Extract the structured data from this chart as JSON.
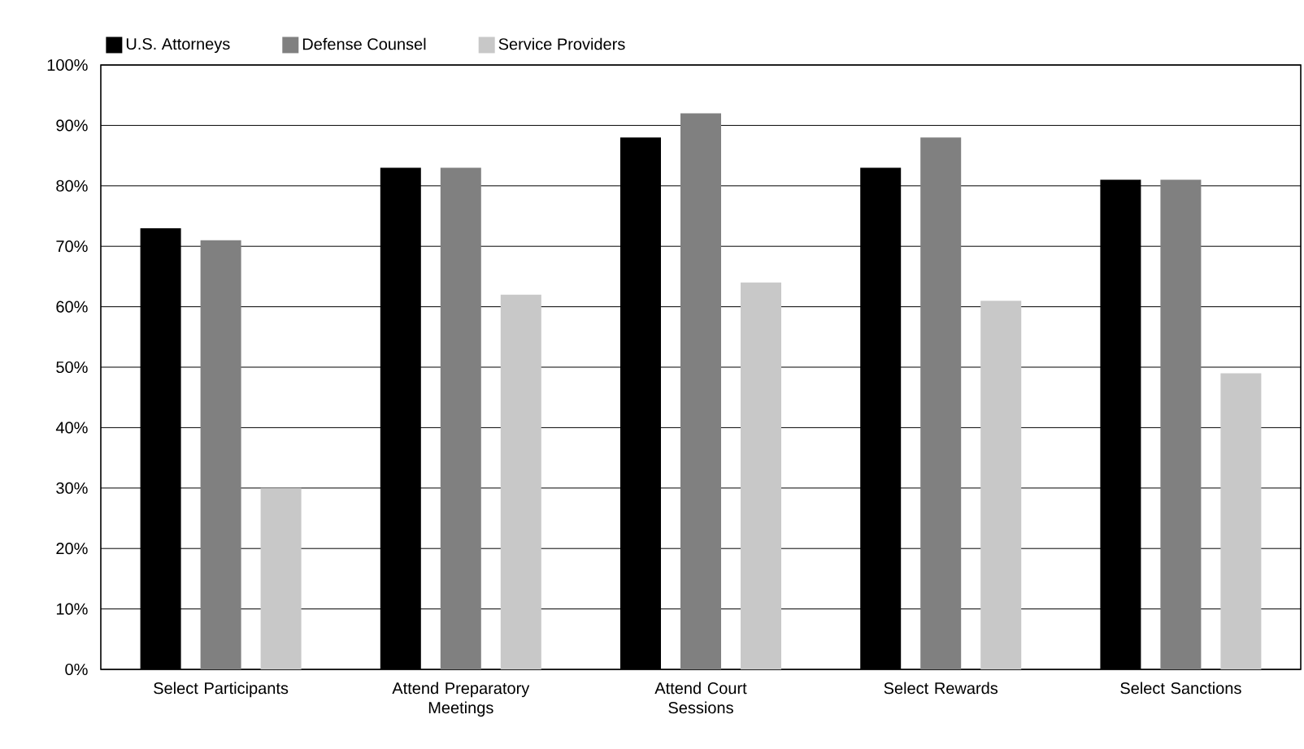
{
  "chart_data": {
    "type": "bar",
    "categories": [
      "Select Participants",
      "Attend Preparatory Meetings",
      "Attend Court Sessions",
      "Select Rewards",
      "Select Sanctions"
    ],
    "series": [
      {
        "name": "U.S. Attorneys",
        "color": "#000000",
        "values": [
          73,
          83,
          88,
          83,
          81
        ]
      },
      {
        "name": "Defense Counsel",
        "color": "#808080",
        "values": [
          71,
          83,
          92,
          88,
          81
        ]
      },
      {
        "name": "Service Providers",
        "color": "#c8c8c8",
        "values": [
          30,
          62,
          64,
          61,
          49
        ]
      }
    ],
    "ylim": [
      0,
      100
    ],
    "yticks": [
      {
        "value": 0,
        "label": "0%"
      },
      {
        "value": 10,
        "label": "10%"
      },
      {
        "value": 20,
        "label": "20%"
      },
      {
        "value": 30,
        "label": "30%"
      },
      {
        "value": 40,
        "label": "40%"
      },
      {
        "value": 50,
        "label": "50%"
      },
      {
        "value": 60,
        "label": "60%"
      },
      {
        "value": 70,
        "label": "70%"
      },
      {
        "value": 80,
        "label": "80%"
      },
      {
        "value": 90,
        "label": "90%"
      },
      {
        "value": 100,
        "label": "100%"
      }
    ],
    "grid": "y",
    "legend": "top left"
  }
}
